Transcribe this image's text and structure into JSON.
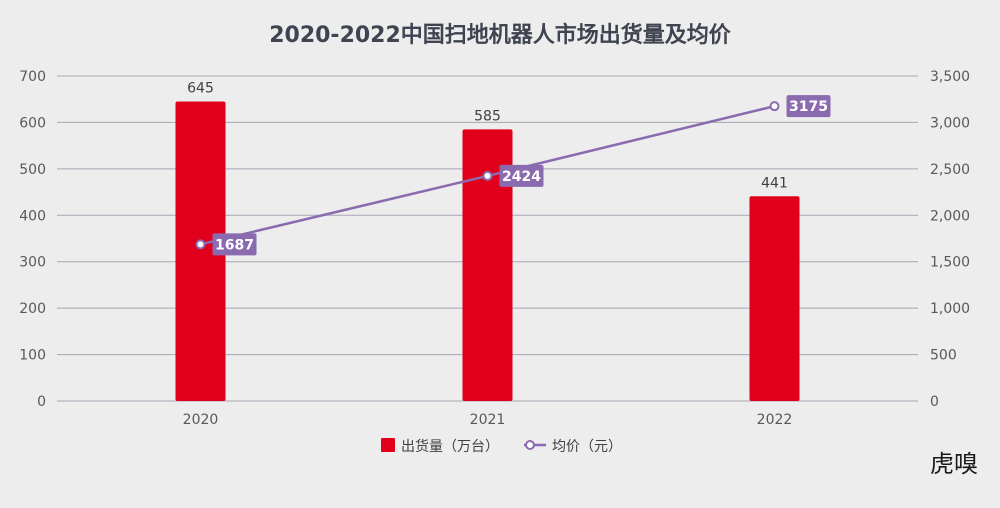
{
  "chart_data": {
    "type": "bar",
    "title": "2020-2022中国扫地机器人市场出货量及均价",
    "categories": [
      "2020",
      "2021",
      "2022"
    ],
    "series": [
      {
        "name": "出货量（万台）",
        "type": "bar",
        "axis": "left",
        "values": [
          645,
          585,
          441
        ],
        "color": "#e0001b"
      },
      {
        "name": "均价（元）",
        "type": "line",
        "axis": "right",
        "values": [
          1687,
          2424,
          3175
        ],
        "color": "#8b6bb0"
      }
    ],
    "y_left": {
      "min": 0,
      "max": 700,
      "step": 100,
      "ticks": [
        "0",
        "100",
        "200",
        "300",
        "400",
        "500",
        "600",
        "700"
      ]
    },
    "y_right": {
      "min": 0,
      "max": 3500,
      "step": 500,
      "ticks": [
        "0",
        "500",
        "1,000",
        "1,500",
        "2,000",
        "2,500",
        "3,000",
        "3,500"
      ]
    },
    "grid": true,
    "legend_position": "bottom"
  },
  "watermark": "虎嗅",
  "colors": {
    "background": "#ededed",
    "grid": "#a6a6b3",
    "bar": "#e0001b",
    "line": "#8b6bb0"
  }
}
